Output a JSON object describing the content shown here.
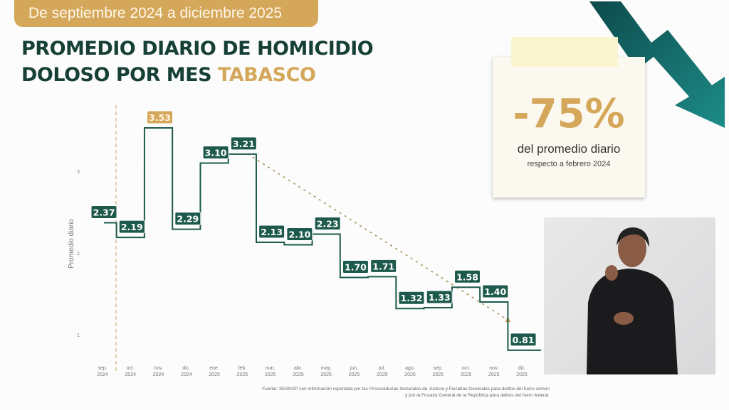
{
  "header": {
    "period": "De septiembre 2024 a diciembre 2025",
    "title_line1": "PROMEDIO DIARIO DE HOMICIDIO",
    "title_line2": "DOLOSO POR MES ",
    "title_highlight": "TABASCO"
  },
  "callout": {
    "value": "-75%",
    "text": "del promedio diario",
    "subtext": "respecto a febrero 2024"
  },
  "source": {
    "line1": "Fuente: SESNSP con información reportada por las Procuradurías Generales de Justicia y Fiscalías Generales para delitos del fuero común",
    "line2": "y por la Fiscalía General de la República para delitos del fuero federal."
  },
  "colors": {
    "primary": "#1d5a4c",
    "accent": "#d5a75a",
    "title": "#163f36"
  },
  "chart_data": {
    "type": "line",
    "style": "step",
    "ylabel": "Promedio diario",
    "yticks": [
      1,
      2,
      3
    ],
    "ylim": [
      0.75,
      3.8
    ],
    "grid": false,
    "categories": [
      [
        "sep.",
        "2024"
      ],
      [
        "oct.",
        "2024"
      ],
      [
        "nov.",
        "2024"
      ],
      [
        "dic.",
        "2024"
      ],
      [
        "ene.",
        "2025"
      ],
      [
        "feb.",
        "2025"
      ],
      [
        "mar.",
        "2025"
      ],
      [
        "abr.",
        "2025"
      ],
      [
        "may.",
        "2025"
      ],
      [
        "jun.",
        "2025"
      ],
      [
        "jul.",
        "2025"
      ],
      [
        "ago.",
        "2025"
      ],
      [
        "sep.",
        "2025"
      ],
      [
        "oct.",
        "2025"
      ],
      [
        "nov.",
        "2025"
      ],
      [
        "dic.",
        "2025"
      ]
    ],
    "values": [
      2.37,
      2.19,
      3.53,
      2.29,
      3.1,
      3.21,
      2.13,
      2.1,
      2.23,
      1.7,
      1.71,
      1.32,
      1.33,
      1.58,
      1.4,
      0.81
    ],
    "labels": [
      "2.37",
      "2.19",
      "3.53",
      "2.29",
      "3.10",
      "3.21",
      "2.13",
      "2.10",
      "2.23",
      "1.70",
      "1.71",
      "1.32",
      "1.33",
      "1.58",
      "1.40",
      "0.81"
    ],
    "highlight_index": 2,
    "trend_line": {
      "from_index": 5,
      "from_value": 3.21,
      "to_index": 14.5,
      "to_value": 1.18,
      "style": "dotted"
    },
    "reference_line_after_index": 0
  }
}
